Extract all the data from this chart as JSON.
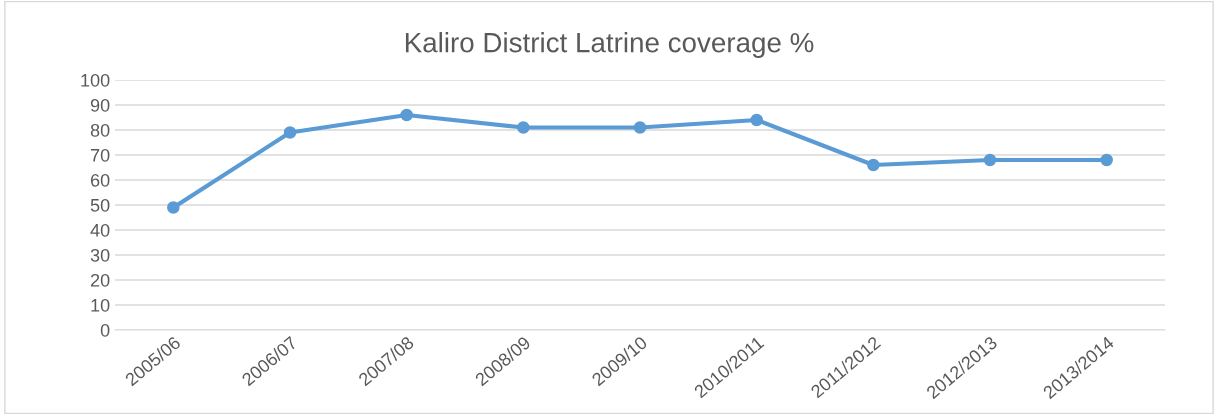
{
  "chart_data": {
    "type": "line",
    "title": "Kaliro District Latrine coverage %",
    "categories": [
      "2005/06",
      "2006/07",
      "2007/08",
      "2008/09",
      "2009/10",
      "2010/2011",
      "2011/2012",
      "2012/2013",
      "2013/2014"
    ],
    "series": [
      {
        "color": "#5b9bd5",
        "values": [
          49,
          79,
          86,
          81,
          81,
          84,
          66,
          68,
          68
        ]
      }
    ],
    "ylim": [
      0,
      100
    ],
    "yticks": [
      0,
      10,
      20,
      30,
      40,
      50,
      60,
      70,
      80,
      90,
      100
    ],
    "grid": "y",
    "marker": "circle",
    "line_style": "solid",
    "legend": false
  }
}
